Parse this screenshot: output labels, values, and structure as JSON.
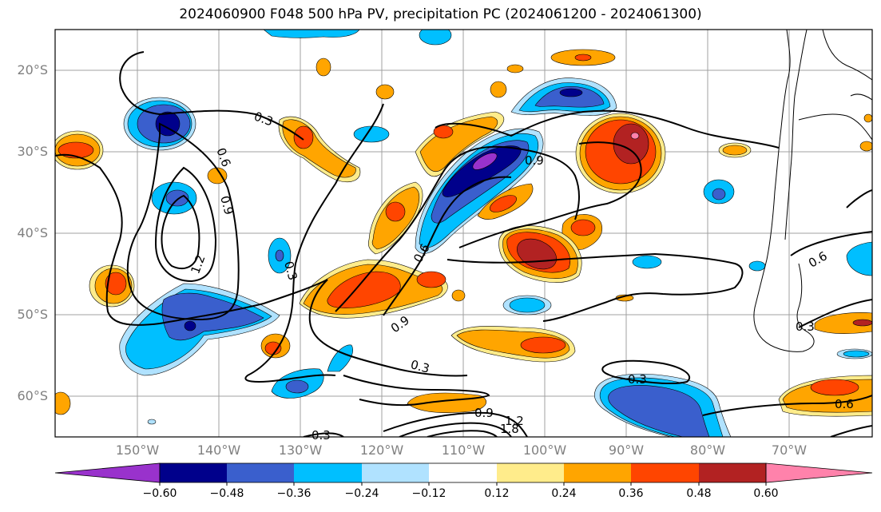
{
  "title": "2024060900 F048 500 hPa PV, precipitation PC (2024061200 - 2024061300)",
  "map": {
    "lat_labels": [
      "20°S",
      "30°S",
      "40°S",
      "50°S",
      "60°S"
    ],
    "lon_labels": [
      "150°W",
      "140°W",
      "130°W",
      "120°W",
      "110°W",
      "100°W",
      "90°W",
      "80°W",
      "70°W"
    ]
  },
  "contour_labels": [
    "0.3",
    "0.6",
    "0.9",
    "1.2",
    "1.8",
    "0.9",
    "0.6",
    "0.3",
    "0.9",
    "0.3",
    "0.3",
    "0.6",
    "0.3",
    "0.6",
    "1.2",
    "0.9",
    "0.3"
  ],
  "colorbar": {
    "tick_labels": [
      "−0.60",
      "−0.48",
      "−0.36",
      "−0.24",
      "−0.12",
      "0.12",
      "0.24",
      "0.36",
      "0.48",
      "0.60"
    ],
    "colors": [
      "#9932cc",
      "#00008b",
      "#3a5fcd",
      "#00bfff",
      "#b0e2ff",
      "#ffffff",
      "#ffec8b",
      "#ffa500",
      "#ff4500",
      "#b22222",
      "#ff82ab"
    ]
  }
}
